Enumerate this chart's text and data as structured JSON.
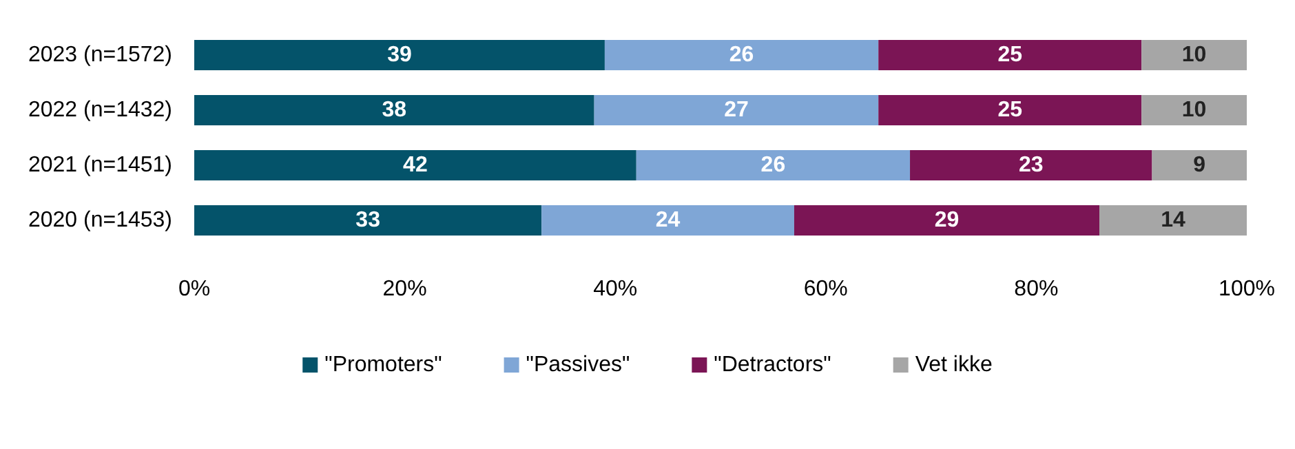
{
  "chart_data": {
    "type": "bar",
    "orientation": "horizontal",
    "stacked": true,
    "data_labels": true,
    "grid": false,
    "legend": "bottom",
    "categories": [
      "2023 (n=1572)",
      "2022 (n=1432)",
      "2021 (n=1451)",
      "2020 (n=1453)"
    ],
    "xlim": [
      0,
      100
    ],
    "xticks": [
      {
        "value": 0,
        "label": "0%"
      },
      {
        "value": 20,
        "label": "20%"
      },
      {
        "value": 40,
        "label": "40%"
      },
      {
        "value": 60,
        "label": "60%"
      },
      {
        "value": 80,
        "label": "80%"
      },
      {
        "value": 100,
        "label": "100%"
      }
    ],
    "series": [
      {
        "name": "\"Promoters\"",
        "color": "#04536a",
        "values": [
          39,
          38,
          42,
          33
        ]
      },
      {
        "name": "\"Passives\"",
        "color": "#7fa6d6",
        "values": [
          26,
          27,
          26,
          24
        ]
      },
      {
        "name": "\"Detractors\"",
        "color": "#7b1555",
        "values": [
          25,
          25,
          23,
          29
        ]
      },
      {
        "name": "Vet ikke",
        "color": "#a6a6a6",
        "values": [
          10,
          10,
          9,
          14
        ]
      }
    ]
  }
}
